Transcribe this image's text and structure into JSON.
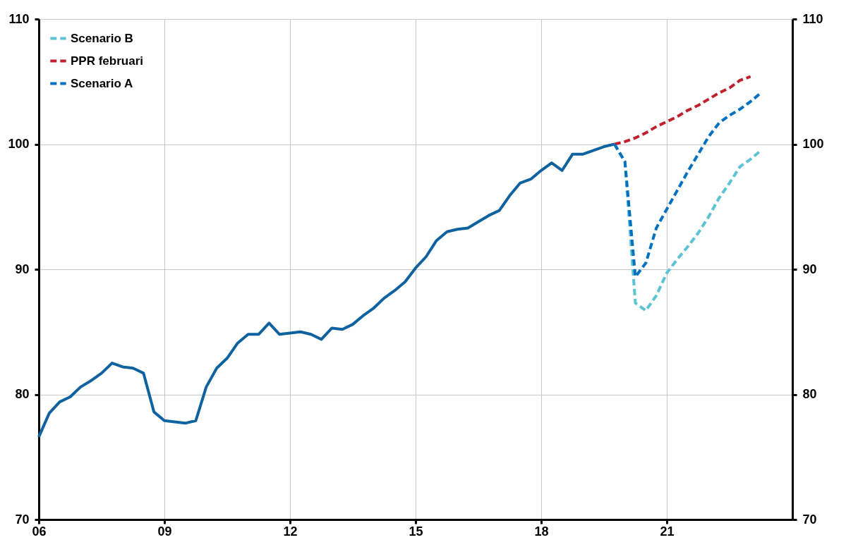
{
  "chart_data": {
    "type": "line",
    "xlim": [
      2006,
      2024
    ],
    "xticks": [
      {
        "value": 2006,
        "label": "06"
      },
      {
        "value": 2009,
        "label": "09"
      },
      {
        "value": 2012,
        "label": "12"
      },
      {
        "value": 2015,
        "label": "15"
      },
      {
        "value": 2018,
        "label": "18"
      },
      {
        "value": 2021,
        "label": "21"
      }
    ],
    "ylim": [
      70,
      110
    ],
    "yticks": [
      70,
      80,
      90,
      100,
      110
    ],
    "y2lim": [
      70,
      110
    ],
    "y2ticks": [
      70,
      80,
      90,
      100,
      110
    ],
    "grid": true,
    "legend": "top left",
    "series": [
      {
        "color": "#0e62a0",
        "line_style": "solid",
        "x": [
          2006,
          2006.25,
          2006.5,
          2006.75,
          2007,
          2007.25,
          2007.5,
          2007.75,
          2008,
          2008.25,
          2008.5,
          2008.75,
          2009,
          2009.25,
          2009.5,
          2009.75,
          2010,
          2010.25,
          2010.5,
          2010.75,
          2011,
          2011.25,
          2011.5,
          2011.75,
          2012,
          2012.25,
          2012.5,
          2012.75,
          2013,
          2013.25,
          2013.5,
          2013.75,
          2014,
          2014.25,
          2014.5,
          2014.75,
          2015,
          2015.25,
          2015.5,
          2015.75,
          2016,
          2016.25,
          2016.5,
          2016.75,
          2017,
          2017.25,
          2017.5,
          2017.75,
          2018,
          2018.25,
          2018.5,
          2018.75,
          2019,
          2019.25,
          2019.5,
          2019.75
        ],
        "values": [
          76.6,
          78.5,
          79.4,
          79.8,
          80.6,
          81.1,
          81.7,
          82.5,
          82.2,
          82.1,
          81.7,
          78.6,
          77.9,
          77.8,
          77.7,
          77.9,
          80.6,
          82.1,
          82.9,
          84.1,
          84.8,
          84.8,
          85.7,
          84.8,
          84.9,
          85.0,
          84.8,
          84.4,
          85.3,
          85.2,
          85.6,
          86.3,
          86.9,
          87.7,
          88.3,
          89.0,
          90.1,
          91.0,
          92.3,
          93.0,
          93.2,
          93.3,
          93.8,
          94.3,
          94.7,
          95.9,
          96.9,
          97.2,
          97.9,
          98.5,
          97.9,
          99.2,
          99.2,
          99.5,
          99.8,
          100.0
        ]
      },
      {
        "name": "Scenario B",
        "color": "#5bc3d5",
        "line_style": "dashed",
        "x": [
          2019.75,
          2020,
          2020.25,
          2020.5,
          2020.75,
          2021,
          2021.25,
          2021.5,
          2021.75,
          2022,
          2022.25,
          2022.5,
          2022.75,
          2023,
          2023.25
        ],
        "values": [
          100.0,
          98.6,
          87.3,
          86.7,
          87.9,
          89.7,
          90.8,
          91.8,
          92.9,
          94.2,
          95.7,
          96.9,
          98.2,
          98.8,
          99.5
        ]
      },
      {
        "name": "PPR februari",
        "color": "#c0202e",
        "line_style": "dashed",
        "x": [
          2019.75,
          2020,
          2020.25,
          2020.5,
          2020.75,
          2021,
          2021.25,
          2021.5,
          2021.75,
          2022,
          2022.25,
          2022.5,
          2022.75,
          2023
        ],
        "values": [
          100.0,
          100.2,
          100.5,
          100.9,
          101.4,
          101.8,
          102.2,
          102.7,
          103.1,
          103.6,
          104.1,
          104.5,
          105.1,
          105.4
        ]
      },
      {
        "name": "Scenario A",
        "color": "#0070c0",
        "line_style": "dashed",
        "x": [
          2019.75,
          2020,
          2020.25,
          2020.5,
          2020.75,
          2021,
          2021.25,
          2021.5,
          2021.75,
          2022,
          2022.25,
          2022.5,
          2022.75,
          2023,
          2023.25
        ],
        "values": [
          100.0,
          98.6,
          89.4,
          90.5,
          93.3,
          94.8,
          96.3,
          97.8,
          99.2,
          100.6,
          101.7,
          102.3,
          102.8,
          103.4,
          104.1
        ]
      }
    ]
  }
}
